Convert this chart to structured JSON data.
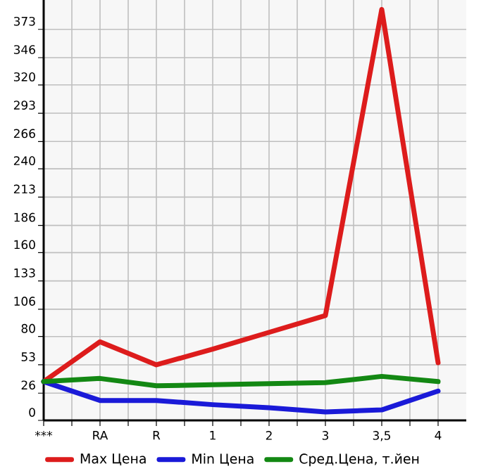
{
  "chart_data": {
    "type": "line",
    "categories": [
      "***",
      "RA",
      "R",
      "1",
      "2",
      "3",
      "3,5",
      "4"
    ],
    "series": [
      {
        "name": "Max Цена",
        "color": "#dd1c1c",
        "values": [
          37,
          75,
          53,
          68,
          84,
          100,
          392,
          55
        ]
      },
      {
        "name": "Min Цена",
        "color": "#1a1ad8",
        "values": [
          37,
          19,
          19,
          15,
          12,
          8,
          10,
          28
        ]
      },
      {
        "name": "Сред.Цена, т.йен",
        "color": "#138813",
        "values": [
          37,
          40,
          33,
          34,
          35,
          36,
          42,
          37
        ]
      }
    ],
    "ylim": [
      0,
      401
    ],
    "yticks": [
      0,
      26,
      53,
      80,
      106,
      133,
      160,
      186,
      213,
      240,
      266,
      293,
      320,
      346,
      373
    ],
    "grid": true,
    "legend": "bottom",
    "marker": "none",
    "line_style": "solid"
  }
}
